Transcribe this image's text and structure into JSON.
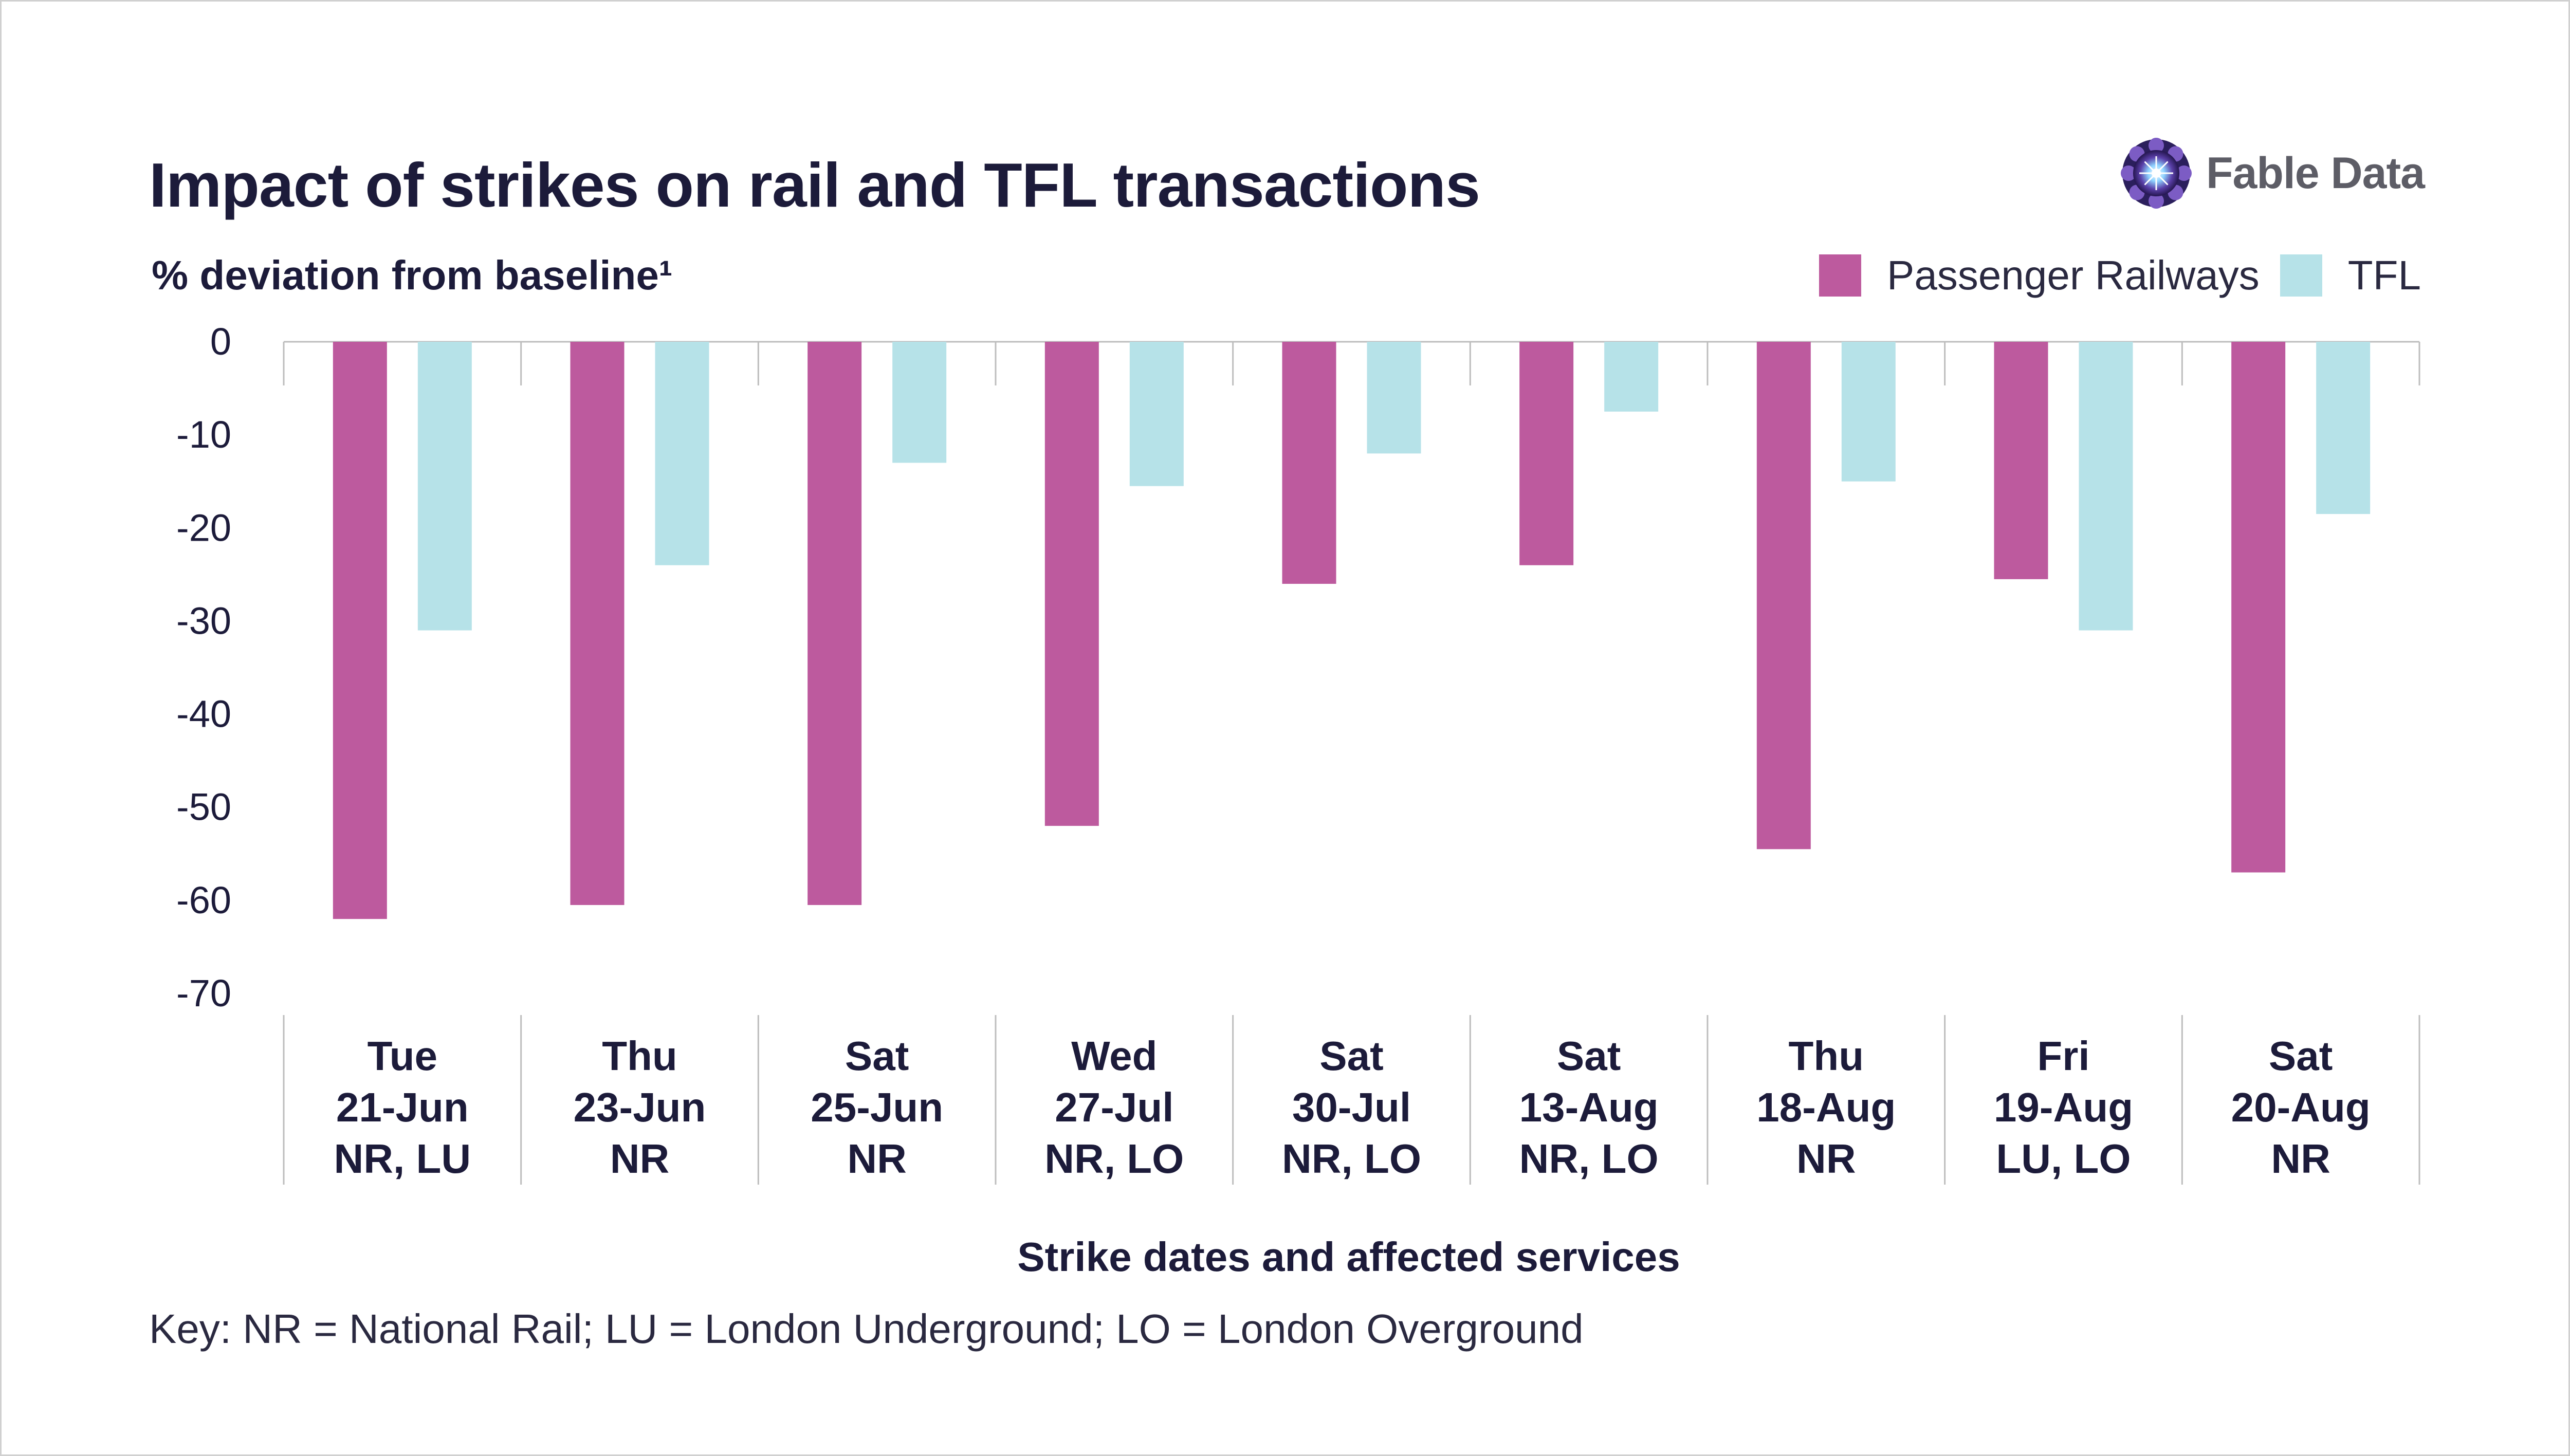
{
  "header": {
    "title": "Impact of strikes on rail and TFL transactions",
    "subtitle": "% deviation from baseline¹",
    "brand": "Fable Data"
  },
  "legend": {
    "items": [
      {
        "label": "Passenger Railways",
        "color": "#bd5a9e"
      },
      {
        "label": "TFL",
        "color": "#b6e2e8"
      }
    ],
    "position": "top-right"
  },
  "footer": {
    "xlabel": "Strike dates and affected services",
    "key": "Key: NR = National Rail; LU = London Underground; LO = London Overground"
  },
  "chart_data": {
    "type": "bar",
    "title": "Impact of strikes on rail and TFL transactions",
    "subtitle": "% deviation from baseline¹",
    "xlabel": "Strike dates and affected services",
    "ylabel": "",
    "ylim": [
      -70,
      0
    ],
    "yticks": [
      0,
      -10,
      -20,
      -30,
      -40,
      -50,
      -60,
      -70
    ],
    "categories": [
      [
        "Tue",
        "21-Jun",
        "NR, LU"
      ],
      [
        "Thu",
        "23-Jun",
        "NR"
      ],
      [
        "Sat",
        "25-Jun",
        "NR"
      ],
      [
        "Wed",
        "27-Jul",
        "NR, LO"
      ],
      [
        "Sat",
        "30-Jul",
        "NR, LO"
      ],
      [
        "Sat",
        "13-Aug",
        "NR, LO"
      ],
      [
        "Thu",
        "18-Aug",
        "NR"
      ],
      [
        "Fri",
        "19-Aug",
        "LU, LO"
      ],
      [
        "Sat",
        "20-Aug",
        "NR"
      ]
    ],
    "series": [
      {
        "name": "Passenger Railways",
        "color": "#bd5a9e",
        "values": [
          -62,
          -60.5,
          -60.5,
          -52,
          -26,
          -24,
          -54.5,
          -25.5,
          -57
        ]
      },
      {
        "name": "TFL",
        "color": "#b6e2e8",
        "values": [
          -31,
          -24,
          -13,
          -15.5,
          -12,
          -7.5,
          -15,
          -31,
          -18.5
        ]
      }
    ],
    "grid": false,
    "legend": "top-right"
  }
}
